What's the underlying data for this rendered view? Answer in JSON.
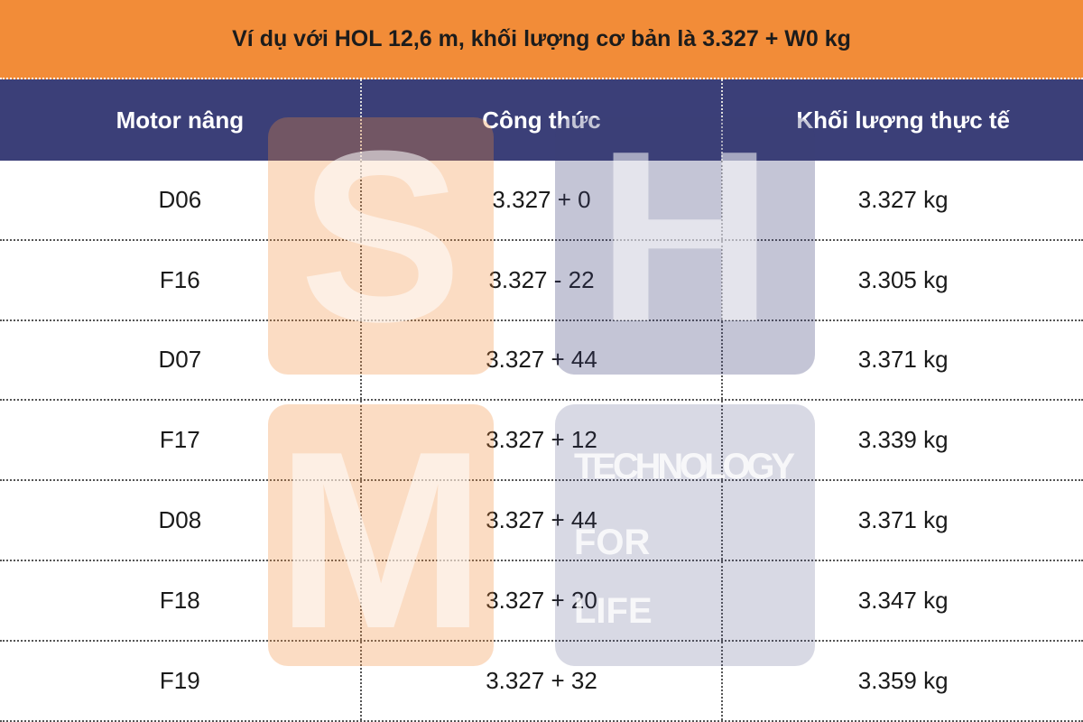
{
  "title": "Ví dụ với HOL 12,6 m, khối lượng cơ bản là 3.327 + W0 kg",
  "table": {
    "header": [
      "Motor nâng",
      "Công thức",
      "Khối lượng thực tế"
    ],
    "rows": [
      [
        "D06",
        "3.327 + 0",
        "3.327 kg"
      ],
      [
        "F16",
        "3.327 - 22",
        "3.305 kg"
      ],
      [
        "D07",
        "3.327 + 44",
        "3.371 kg"
      ],
      [
        "F17",
        "3.327 + 12",
        "3.339 kg"
      ],
      [
        "D08",
        "3.327 + 44",
        "3.371 kg"
      ],
      [
        "F18",
        "3.327 + 20",
        "3.347 kg"
      ],
      [
        "F19",
        "3.327 + 32",
        "3.359 kg"
      ]
    ]
  },
  "watermark": {
    "letters": [
      "S",
      "H",
      "M"
    ],
    "tagline": [
      "TECHNOLOGY",
      "FOR",
      "LIFE"
    ]
  }
}
